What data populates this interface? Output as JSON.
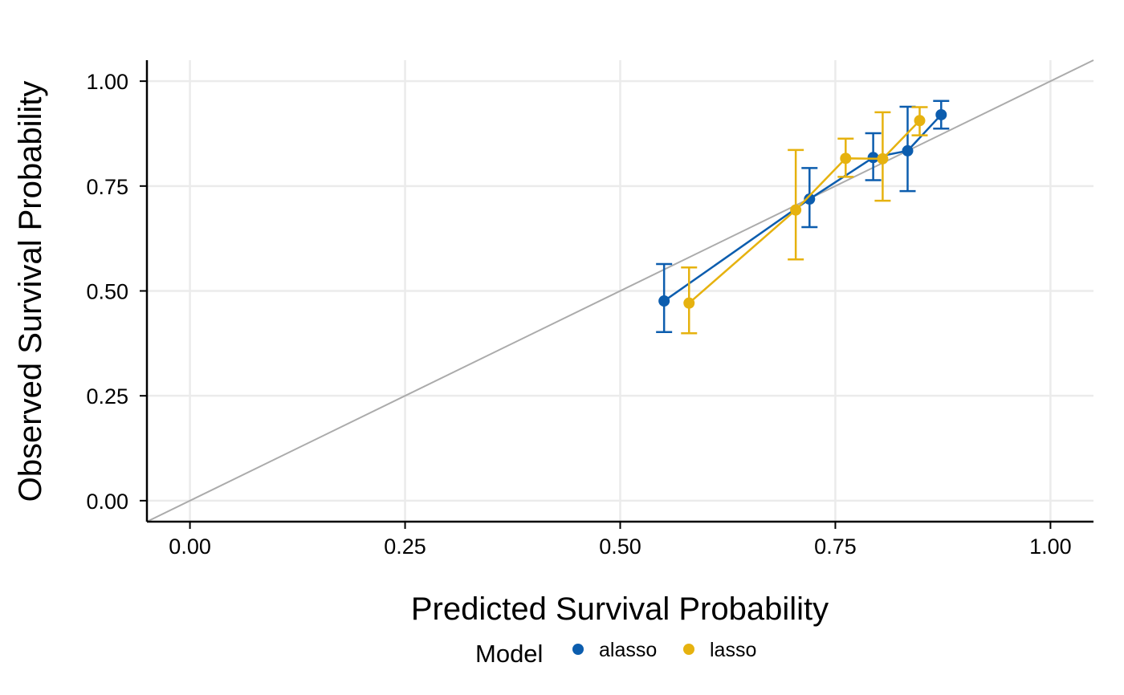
{
  "chart_data": {
    "type": "line",
    "title": "",
    "xlabel": "Predicted Survival Probability",
    "ylabel": "Observed Survival Probability",
    "xlim": [
      -0.05,
      1.05
    ],
    "ylim": [
      -0.05,
      1.05
    ],
    "x_ticks": [
      "0.00",
      "0.25",
      "0.50",
      "0.75",
      "1.00"
    ],
    "y_ticks": [
      "0.00",
      "0.25",
      "0.50",
      "0.75",
      "1.00"
    ],
    "grid": true,
    "reference_line": {
      "slope": 1,
      "intercept": 0,
      "color": "#ababab"
    },
    "legend": {
      "title": "Model",
      "position": "bottom"
    },
    "series": [
      {
        "name": "alasso",
        "color": "#0c5dae",
        "points": [
          {
            "x": 0.551,
            "y": 0.476,
            "lower": 0.402,
            "upper": 0.564
          },
          {
            "x": 0.72,
            "y": 0.719,
            "lower": 0.652,
            "upper": 0.793
          },
          {
            "x": 0.794,
            "y": 0.818,
            "lower": 0.764,
            "upper": 0.876
          },
          {
            "x": 0.834,
            "y": 0.834,
            "lower": 0.738,
            "upper": 0.939
          },
          {
            "x": 0.873,
            "y": 0.92,
            "lower": 0.887,
            "upper": 0.953
          }
        ]
      },
      {
        "name": "lasso",
        "color": "#e6b20f",
        "points": [
          {
            "x": 0.58,
            "y": 0.471,
            "lower": 0.399,
            "upper": 0.556
          },
          {
            "x": 0.704,
            "y": 0.693,
            "lower": 0.575,
            "upper": 0.836
          },
          {
            "x": 0.762,
            "y": 0.816,
            "lower": 0.772,
            "upper": 0.863
          },
          {
            "x": 0.805,
            "y": 0.815,
            "lower": 0.715,
            "upper": 0.926
          },
          {
            "x": 0.848,
            "y": 0.906,
            "lower": 0.871,
            "upper": 0.938
          }
        ]
      }
    ]
  }
}
